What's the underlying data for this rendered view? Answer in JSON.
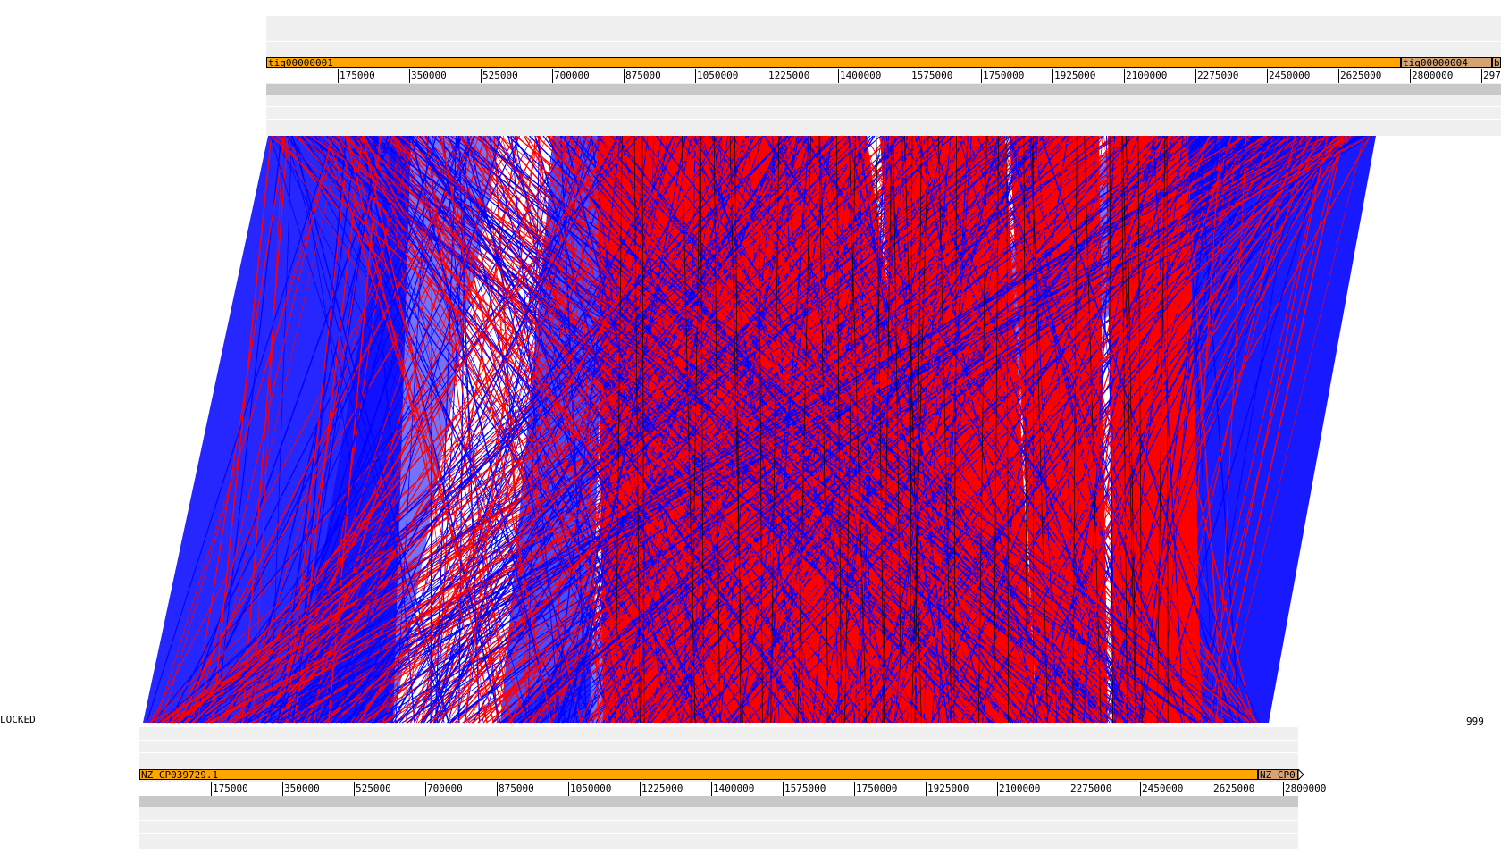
{
  "status": {
    "lock_label": "LOCKED",
    "counter": "999"
  },
  "colors": {
    "forward_match": "#ff0000",
    "reverse_match": "#0000ff",
    "contig_primary": "#ffa500",
    "contig_secondary": "#d4a373",
    "track_background": "#f0f0f0",
    "track_band": "#c8c8c8"
  },
  "top_track": {
    "contigs": [
      {
        "name": "tiq00000001",
        "role": "primary"
      },
      {
        "name": "tiq00000004",
        "role": "secondary"
      },
      {
        "name": "b",
        "role": "secondary"
      }
    ],
    "ticks": [
      "175000",
      "350000",
      "525000",
      "700000",
      "875000",
      "1050000",
      "1225000",
      "1400000",
      "1575000",
      "1750000",
      "1925000",
      "2100000",
      "2275000",
      "2450000",
      "2625000",
      "2800000",
      "297"
    ]
  },
  "bottom_track": {
    "contigs": [
      {
        "name": "NZ_CP039729.1",
        "role": "primary"
      },
      {
        "name": "NZ_CP0",
        "role": "secondary"
      }
    ],
    "ticks": [
      "175000",
      "350000",
      "525000",
      "700000",
      "875000",
      "1050000",
      "1225000",
      "1400000",
      "1575000",
      "1750000",
      "1925000",
      "2100000",
      "2275000",
      "2450000",
      "2625000",
      "2800000"
    ]
  }
}
